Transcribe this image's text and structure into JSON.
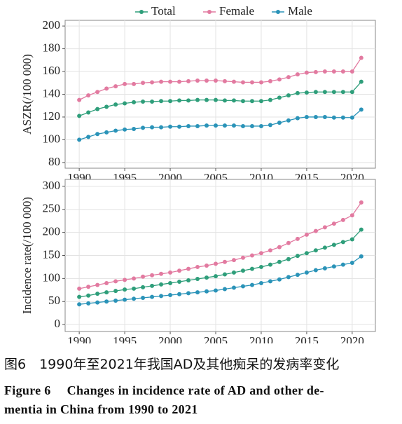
{
  "chart_data": [
    {
      "type": "line",
      "ylabel": "ASZR(/100 000)",
      "x": [
        1990,
        1991,
        1992,
        1993,
        1994,
        1995,
        1996,
        1997,
        1998,
        1999,
        2000,
        2001,
        2002,
        2003,
        2004,
        2005,
        2006,
        2007,
        2008,
        2009,
        2010,
        2011,
        2012,
        2013,
        2014,
        2015,
        2016,
        2017,
        2018,
        2019,
        2020,
        2021
      ],
      "xlim": [
        1988.45,
        2022.55
      ],
      "xticks": [
        1990,
        1995,
        2000,
        2005,
        2010,
        2015,
        2020
      ],
      "ylim": [
        75,
        205
      ],
      "yticks": [
        80,
        100,
        120,
        140,
        160,
        180,
        200
      ],
      "grid": true,
      "series": [
        {
          "name": "Total",
          "color": "#2e9e7a",
          "values": [
            121,
            124,
            127,
            129,
            131,
            132,
            133,
            133.5,
            133.5,
            134,
            134,
            134.5,
            134.5,
            135,
            135,
            135,
            134.5,
            134.5,
            134,
            134,
            134,
            135,
            137,
            139,
            141,
            141.5,
            142,
            142,
            142,
            142,
            142,
            151
          ]
        },
        {
          "name": "Female",
          "color": "#e27aa0",
          "values": [
            135,
            139,
            142,
            145,
            147,
            149,
            149,
            150,
            150.5,
            151,
            151,
            151,
            151.5,
            152,
            152,
            152,
            151.5,
            151,
            150.5,
            150.5,
            150.5,
            151.5,
            153,
            155,
            157.5,
            159,
            159.5,
            160,
            160,
            160,
            160,
            172
          ]
        },
        {
          "name": "Male",
          "color": "#2a93b8",
          "values": [
            100,
            102.5,
            105,
            106.5,
            108,
            109,
            109.5,
            110.5,
            111,
            111,
            111.5,
            111.5,
            112,
            112,
            112.5,
            112.5,
            112.5,
            112.5,
            112,
            112,
            112,
            113,
            115,
            117,
            119,
            120,
            120,
            120,
            119.5,
            119.5,
            119.5,
            126.5
          ]
        }
      ]
    },
    {
      "type": "line",
      "ylabel": "Incidence rate(/100 000)",
      "x": [
        1990,
        1991,
        1992,
        1993,
        1994,
        1995,
        1996,
        1997,
        1998,
        1999,
        2000,
        2001,
        2002,
        2003,
        2004,
        2005,
        2006,
        2007,
        2008,
        2009,
        2010,
        2011,
        2012,
        2013,
        2014,
        2015,
        2016,
        2017,
        2018,
        2019,
        2020,
        2021
      ],
      "xlim": [
        1988.45,
        2022.55
      ],
      "xticks": [
        1990,
        1995,
        2000,
        2005,
        2010,
        2015,
        2020
      ],
      "ylim": [
        -15,
        315
      ],
      "yticks": [
        0,
        50,
        100,
        150,
        200,
        250,
        300
      ],
      "grid": true,
      "series": [
        {
          "color": "#2e9e7a",
          "values": [
            60,
            63,
            67,
            70,
            73,
            76,
            78,
            81,
            84,
            87,
            90,
            93,
            96,
            99,
            102,
            105,
            109,
            113,
            117,
            121,
            125,
            130,
            136,
            142,
            149,
            155,
            161,
            167,
            173,
            179,
            185,
            206
          ]
        },
        {
          "color": "#e27aa0",
          "values": [
            78,
            82,
            86,
            90,
            94,
            97,
            100,
            104,
            107,
            110,
            113,
            117,
            121,
            125,
            128,
            132,
            136,
            140,
            145,
            150,
            155,
            161,
            168,
            177,
            186,
            195,
            203,
            211,
            219,
            227,
            237,
            265
          ]
        },
        {
          "color": "#2a93b8",
          "values": [
            44,
            46,
            48,
            50,
            52,
            54,
            56,
            58,
            60,
            62,
            64,
            66,
            68,
            70,
            72,
            74,
            77,
            80,
            83,
            86,
            90,
            94,
            98,
            103,
            108,
            113,
            118,
            122,
            126,
            130,
            134,
            148
          ]
        }
      ]
    }
  ],
  "caption": {
    "zh": "图6　1990年至2021年我国AD及其他痴呆的发病率变化",
    "en": [
      "Figure 6　 Changes in incidence rate of AD and other de-",
      "mentia in China from 1990 to 2021"
    ]
  }
}
